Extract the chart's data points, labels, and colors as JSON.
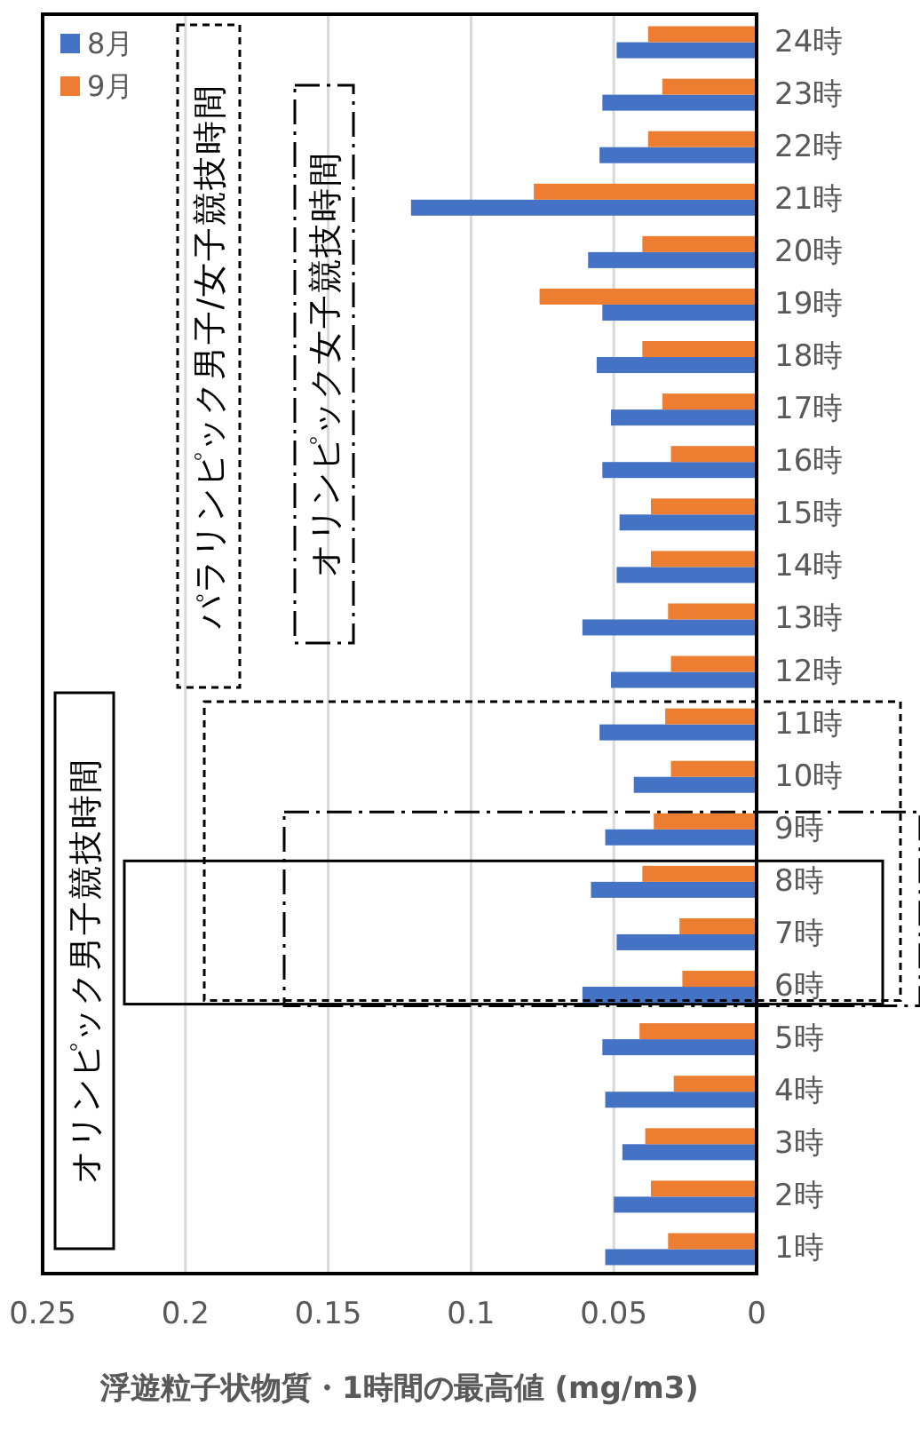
{
  "chart_data": {
    "type": "bar",
    "orientation": "horizontal",
    "xlabel": "浮遊粒子状物質・1時間の最高値 (mg/m3)",
    "categories": [
      "24時",
      "23時",
      "22時",
      "21時",
      "20時",
      "19時",
      "18時",
      "17時",
      "16時",
      "15時",
      "14時",
      "13時",
      "12時",
      "11時",
      "10時",
      "9時",
      "8時",
      "7時",
      "6時",
      "5時",
      "4時",
      "3時",
      "2時",
      "1時"
    ],
    "series": [
      {
        "name": "8月",
        "color": "#4472c4",
        "values": [
          0.049,
          0.054,
          0.055,
          0.121,
          0.059,
          0.054,
          0.056,
          0.051,
          0.054,
          0.048,
          0.049,
          0.061,
          0.051,
          0.055,
          0.043,
          0.053,
          0.058,
          0.049,
          0.061,
          0.054,
          0.053,
          0.047,
          0.05,
          0.053
        ]
      },
      {
        "name": "9月",
        "color": "#ed7d31",
        "values": [
          0.038,
          0.033,
          0.038,
          0.078,
          0.04,
          0.076,
          0.04,
          0.033,
          0.03,
          0.037,
          0.037,
          0.031,
          0.03,
          0.032,
          0.03,
          0.036,
          0.04,
          0.027,
          0.026,
          0.041,
          0.029,
          0.039,
          0.037,
          0.031
        ]
      }
    ],
    "xlim": [
      0.25,
      0
    ],
    "xticks": [
      0.25,
      0.2,
      0.15,
      0.1,
      0.05,
      0
    ],
    "grid": "x",
    "legend": "top left",
    "annotations": [
      "オリンピック男子競技時間",
      "パラリンピック男子/女子競技時間",
      "オリンピック女子競技時間"
    ]
  }
}
